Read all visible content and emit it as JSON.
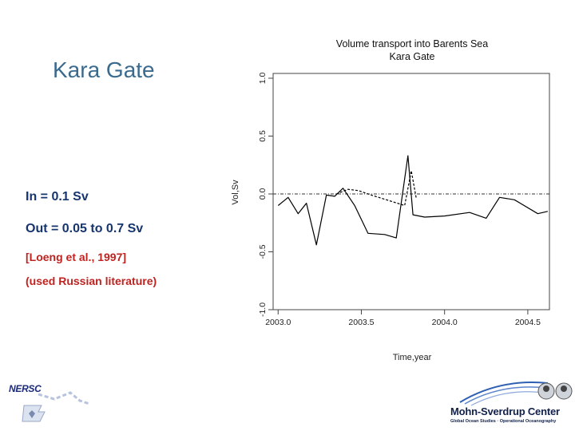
{
  "slide": {
    "title": "Kara Gate",
    "bullets": [
      {
        "label": "In = ",
        "value": "0.1 Sv"
      },
      {
        "label": "Out = ",
        "value": "0.05 to 0.7 Sv"
      },
      {
        "text": "[Loeng et al., 1997]"
      },
      {
        "text": "(used Russian literature)"
      }
    ]
  },
  "logos": {
    "left": {
      "text": "NERSC"
    },
    "right": {
      "name": "Mohn-Sverdrup Center",
      "subtitle": "Global Ocean Studies · Operational Oceanography"
    }
  },
  "colors": {
    "title": "#3a6a8e",
    "bullet_text": "#16356f",
    "reference_text": "#c0221f",
    "line": "#000000"
  },
  "chart_data": {
    "type": "line",
    "title": "Volume transport into Barents Sea",
    "subtitle": "Kara Gate",
    "xlabel": "Time,year",
    "ylabel": "Vol,Sv",
    "xlim": [
      2002.97,
      2004.63
    ],
    "ylim": [
      -1.0,
      1.0
    ],
    "xticks": [
      2003.0,
      2003.5,
      2004.0,
      2004.5
    ],
    "xtick_labels": [
      "2003.0",
      "2003.5",
      "2004.0",
      "2004.5"
    ],
    "yticks": [
      -1.0,
      -0.5,
      0.0,
      0.5,
      1.0
    ],
    "ytick_labels": [
      "-1.0",
      "-0.5",
      "0.0",
      "0.5",
      "1.0"
    ],
    "grid": false,
    "legend": "none",
    "zero_line": true,
    "series": [
      {
        "style": "solid",
        "x": [
          2003.0,
          2003.06,
          2003.12,
          2003.17,
          2003.23,
          2003.29,
          2003.34,
          2003.39,
          2003.46,
          2003.54,
          2003.64,
          2003.71,
          2003.78,
          2003.81,
          2003.88,
          2004.0,
          2004.15,
          2004.25,
          2004.33,
          2004.42,
          2004.56,
          2004.62
        ],
        "y": [
          -0.1,
          -0.03,
          -0.17,
          -0.08,
          -0.44,
          -0.01,
          -0.02,
          0.05,
          -0.1,
          -0.34,
          -0.35,
          -0.38,
          0.33,
          -0.18,
          -0.2,
          -0.19,
          -0.16,
          -0.21,
          -0.03,
          -0.05,
          -0.17,
          -0.15
        ]
      },
      {
        "style": "dashed",
        "x": [
          2003.35,
          2003.42,
          2003.48,
          2003.5,
          2003.56,
          2003.76,
          2003.8,
          2003.83
        ],
        "y": [
          0.0,
          0.04,
          0.03,
          0.02,
          -0.01,
          -0.1,
          0.2,
          -0.04
        ]
      }
    ]
  }
}
